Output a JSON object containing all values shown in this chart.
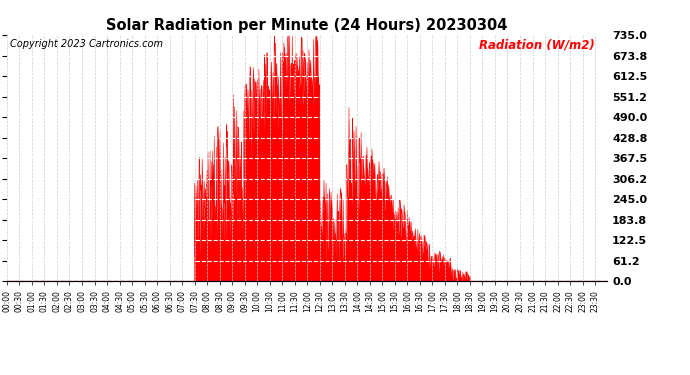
{
  "title": "Solar Radiation per Minute (24 Hours) 20230304",
  "ylabel": "Radiation (W/m2)",
  "copyright_text": "Copyright 2023 Cartronics.com",
  "fill_color": "#FF0000",
  "line_color": "#FF0000",
  "bg_color": "#FFFFFF",
  "grid_major_color": "#CCCCCC",
  "grid_minor_color": "#CCCCCC",
  "dashed_line_color": "#FF0000",
  "yticks": [
    0.0,
    61.2,
    122.5,
    183.8,
    245.0,
    306.2,
    367.5,
    428.8,
    490.0,
    551.2,
    612.5,
    673.8,
    735.0
  ],
  "ymin": 0.0,
  "ymax": 735.0,
  "total_minutes": 1440,
  "peak_minute": 690,
  "peak_value": 735.0,
  "sunrise_minute": 450,
  "sunset_minute": 1110
}
